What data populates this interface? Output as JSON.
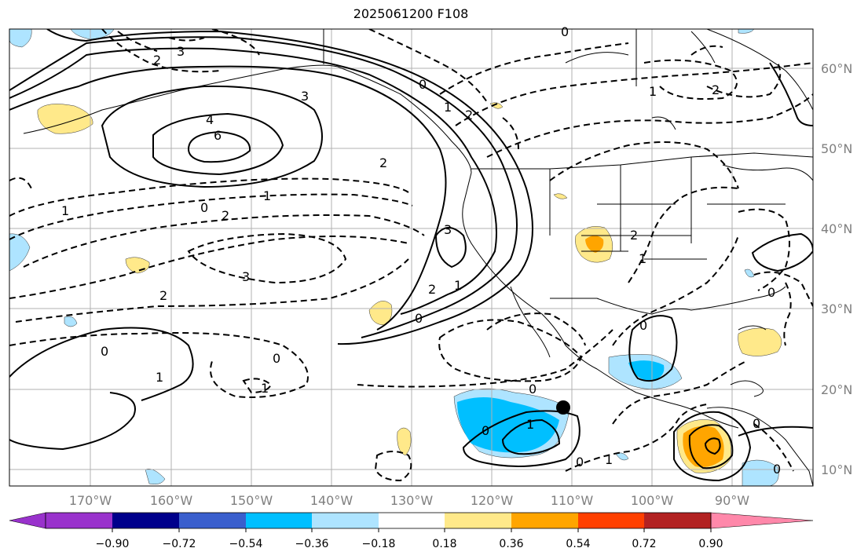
{
  "title": "2025061200 F108",
  "map": {
    "lon_labels": [
      "170°W",
      "160°W",
      "150°W",
      "140°W",
      "130°W",
      "120°W",
      "110°W",
      "100°W",
      "90°W"
    ],
    "lat_labels": [
      "60°N",
      "50°N",
      "40°N",
      "30°N",
      "20°N",
      "10°N"
    ],
    "contour_labels": [
      "3",
      "2",
      "4",
      "6",
      "3",
      "2",
      "0",
      "1",
      "2",
      "1",
      "3",
      "3",
      "2",
      "2",
      "1",
      "0",
      "0",
      "1",
      "0",
      "1",
      "0",
      "1",
      "0",
      "0",
      "0",
      "1",
      "1",
      "2",
      "2",
      "1",
      "0",
      "2",
      "0",
      "0",
      "0",
      "1",
      "0"
    ],
    "marker": "black-dot"
  },
  "colorbar": {
    "tick_labels": [
      "−0.90",
      "−0.72",
      "−0.54",
      "−0.36",
      "−0.18",
      "0.18",
      "0.36",
      "0.54",
      "0.72",
      "0.90"
    ],
    "colors": [
      "#9932cc",
      "#00008b",
      "#3a5fcd",
      "#00bfff",
      "#aee4ff",
      "#ffffff",
      "#ffe98a",
      "#ffa500",
      "#ff4000",
      "#b22222",
      "#ff88aa"
    ]
  }
}
